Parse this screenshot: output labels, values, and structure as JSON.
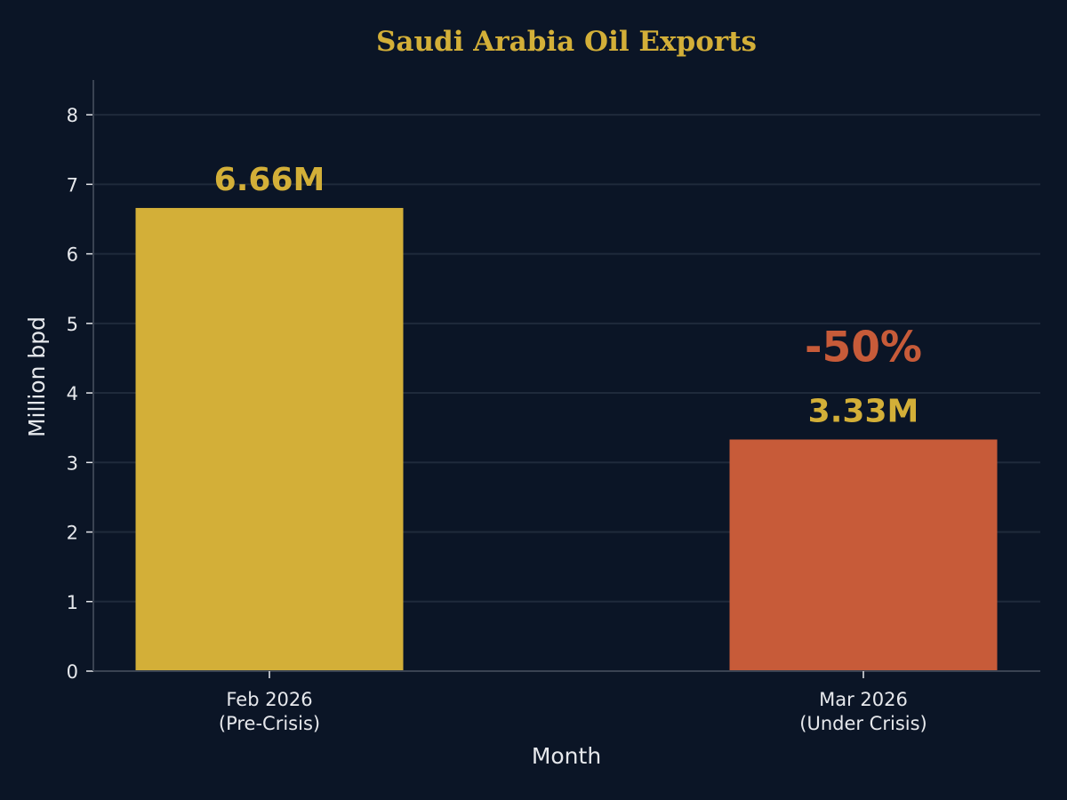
{
  "chart_data": {
    "type": "bar",
    "title": "Saudi Arabia Oil Exports",
    "xlabel": "Month",
    "ylabel": "Million bpd",
    "categories": [
      [
        "Feb 2026",
        "(Pre-Crisis)"
      ],
      [
        "Mar 2026",
        "(Under Crisis)"
      ]
    ],
    "values": [
      6.66,
      3.33
    ],
    "value_labels": [
      "6.66M",
      "3.33M"
    ],
    "annotation": {
      "text": "-50%",
      "category_index": 1
    },
    "ylim": [
      0,
      8.5
    ],
    "yticks": [
      0,
      1,
      2,
      3,
      4,
      5,
      6,
      7,
      8
    ],
    "grid": "horizontal",
    "colors": {
      "background": "#0b1526",
      "bars": [
        "#d3af38",
        "#c75b39"
      ],
      "title": "#d3af38",
      "value_label": "#d3af38",
      "annotation": "#c75b39",
      "text": "#e6e8ec",
      "grid": "#1f2a3b",
      "axis": "#3a4352"
    }
  }
}
